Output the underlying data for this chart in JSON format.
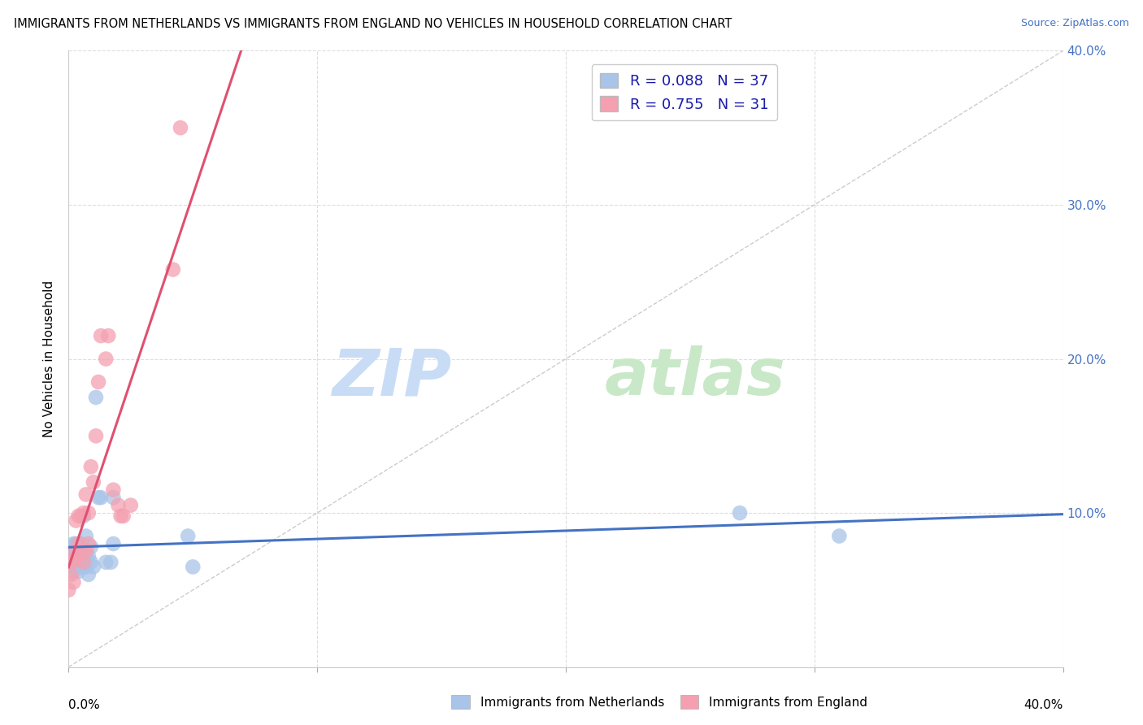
{
  "title": "IMMIGRANTS FROM NETHERLANDS VS IMMIGRANTS FROM ENGLAND NO VEHICLES IN HOUSEHOLD CORRELATION CHART",
  "source": "Source: ZipAtlas.com",
  "ylabel": "No Vehicles in Household",
  "legend_label1": "Immigrants from Netherlands",
  "legend_label2": "Immigrants from England",
  "r1": 0.088,
  "n1": 37,
  "r2": 0.755,
  "n2": 31,
  "color1": "#a8c4e8",
  "color2": "#f4a0b0",
  "line_color1": "#4472c4",
  "line_color2": "#e05070",
  "xlim": [
    0.0,
    0.4
  ],
  "ylim": [
    0.0,
    0.4
  ],
  "scatter1_x": [
    0.0,
    0.001,
    0.001,
    0.001,
    0.002,
    0.002,
    0.002,
    0.003,
    0.003,
    0.003,
    0.004,
    0.004,
    0.004,
    0.005,
    0.005,
    0.005,
    0.006,
    0.006,
    0.007,
    0.007,
    0.007,
    0.008,
    0.008,
    0.009,
    0.009,
    0.01,
    0.011,
    0.012,
    0.013,
    0.015,
    0.017,
    0.018,
    0.018,
    0.048,
    0.05,
    0.27,
    0.31
  ],
  "scatter1_y": [
    0.065,
    0.072,
    0.078,
    0.068,
    0.062,
    0.07,
    0.08,
    0.075,
    0.068,
    0.08,
    0.065,
    0.078,
    0.062,
    0.072,
    0.068,
    0.08,
    0.065,
    0.098,
    0.07,
    0.085,
    0.065,
    0.072,
    0.06,
    0.068,
    0.078,
    0.065,
    0.175,
    0.11,
    0.11,
    0.068,
    0.068,
    0.08,
    0.11,
    0.085,
    0.065,
    0.1,
    0.085
  ],
  "scatter2_x": [
    0.0,
    0.001,
    0.001,
    0.002,
    0.002,
    0.003,
    0.003,
    0.004,
    0.004,
    0.005,
    0.005,
    0.006,
    0.006,
    0.007,
    0.007,
    0.008,
    0.008,
    0.009,
    0.01,
    0.011,
    0.012,
    0.013,
    0.015,
    0.016,
    0.018,
    0.02,
    0.021,
    0.022,
    0.025,
    0.042,
    0.045
  ],
  "scatter2_y": [
    0.05,
    0.06,
    0.068,
    0.055,
    0.075,
    0.07,
    0.095,
    0.08,
    0.098,
    0.075,
    0.098,
    0.068,
    0.1,
    0.075,
    0.112,
    0.08,
    0.1,
    0.13,
    0.12,
    0.15,
    0.185,
    0.215,
    0.2,
    0.215,
    0.115,
    0.105,
    0.098,
    0.098,
    0.105,
    0.258,
    0.35
  ],
  "diag_line_x1": 0.0,
  "diag_line_x2": 0.4,
  "diag_line_y1": 0.0,
  "diag_line_y2": 0.4
}
